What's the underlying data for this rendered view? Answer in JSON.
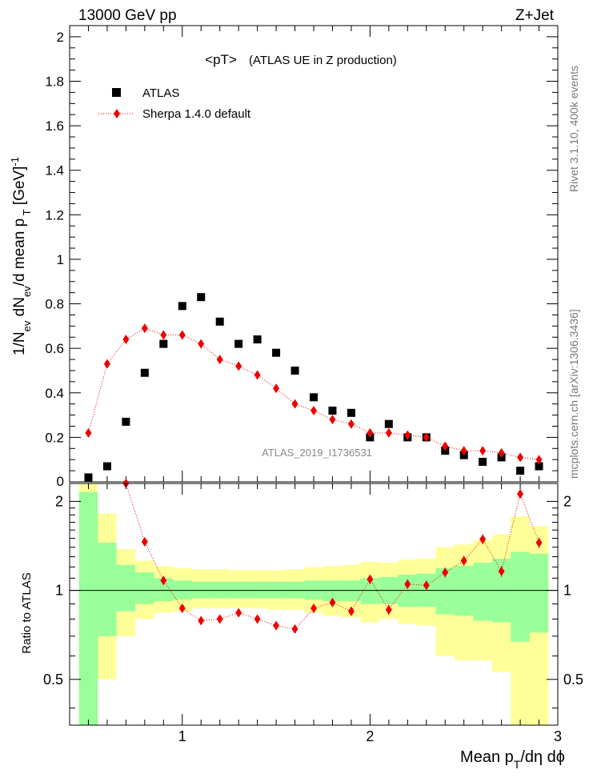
{
  "header": {
    "left": "13000 GeV pp",
    "right": "Z+Jet"
  },
  "side_text": {
    "top": "Rivet 3.1.10,  400k events",
    "bottom": "mcplots.cern.ch [arXiv:1306.3436]"
  },
  "watermark": "ATLAS_2019_I1736531",
  "chart_data": [
    {
      "type": "scatter",
      "panel": "main",
      "title_main": "<pT>",
      "title_sub": "(ATLAS UE in Z production)",
      "ylabel": "1/N_ev dN_ev/d mean p_T [GeV]^-1",
      "xlim": [
        0.4,
        3.0
      ],
      "ylim": [
        0.0,
        2.05
      ],
      "yticks": [
        0.2,
        0.4,
        0.6,
        0.8,
        1.0,
        1.2,
        1.4,
        1.6,
        1.8,
        2.0
      ],
      "ytick_labels": [
        "0.2",
        "0.4",
        "0.6",
        "0.8",
        "1",
        "1.2",
        "1.4",
        "1.6",
        "1.8",
        "2"
      ],
      "bottom_tick_label": "0",
      "legend_position": "top-left",
      "series": [
        {
          "name": "ATLAS",
          "marker": "square",
          "color": "#000000",
          "x": [
            0.5,
            0.6,
            0.7,
            0.8,
            0.9,
            1.0,
            1.1,
            1.2,
            1.3,
            1.4,
            1.5,
            1.6,
            1.7,
            1.8,
            1.9,
            2.0,
            2.1,
            2.2,
            2.3,
            2.4,
            2.5,
            2.6,
            2.7,
            2.8,
            2.9
          ],
          "y": [
            0.02,
            0.07,
            0.27,
            0.49,
            0.62,
            0.79,
            0.83,
            0.72,
            0.62,
            0.64,
            0.58,
            0.5,
            0.38,
            0.32,
            0.31,
            0.2,
            0.26,
            0.2,
            0.2,
            0.14,
            0.12,
            0.09,
            0.11,
            0.05,
            0.07
          ]
        },
        {
          "name": "Sherpa 1.4.0 default",
          "marker": "diamond",
          "color": "#ee0000",
          "line": "dotted",
          "x": [
            0.5,
            0.6,
            0.7,
            0.8,
            0.9,
            1.0,
            1.1,
            1.2,
            1.3,
            1.4,
            1.5,
            1.6,
            1.7,
            1.8,
            1.9,
            2.0,
            2.1,
            2.2,
            2.3,
            2.4,
            2.5,
            2.6,
            2.7,
            2.8,
            2.9
          ],
          "y": [
            0.22,
            0.53,
            0.64,
            0.69,
            0.66,
            0.66,
            0.62,
            0.55,
            0.52,
            0.48,
            0.42,
            0.35,
            0.32,
            0.28,
            0.26,
            0.22,
            0.22,
            0.21,
            0.2,
            0.16,
            0.14,
            0.14,
            0.13,
            0.11,
            0.1
          ],
          "yerr": [
            0.01,
            0.012,
            0.015,
            0.018,
            0.016,
            0.015,
            0.014,
            0.012,
            0.012,
            0.011,
            0.01,
            0.01,
            0.01,
            0.009,
            0.009,
            0.008,
            0.008,
            0.008,
            0.008,
            0.007,
            0.007,
            0.007,
            0.007,
            0.006,
            0.006
          ]
        }
      ]
    },
    {
      "type": "scatter",
      "panel": "ratio",
      "ylabel": "Ratio to ATLAS",
      "xlabel": "Mean p_T/dη dϕ",
      "xlim": [
        0.4,
        3.0
      ],
      "ylim": [
        0.35,
        2.3
      ],
      "log_y": true,
      "yticks": [
        0.5,
        1.0,
        2.0
      ],
      "ytick_labels": [
        "0.5",
        "1",
        "2"
      ],
      "xticks": [
        1,
        2,
        3
      ],
      "xtick_labels": [
        "1",
        "2",
        "3"
      ],
      "bands": {
        "inner_color": "#99ff99",
        "outer_color": "#ffff99",
        "edges": [
          0.45,
          0.55,
          0.65,
          0.75,
          0.85,
          0.95,
          1.05,
          1.15,
          1.25,
          1.35,
          1.45,
          1.55,
          1.65,
          1.75,
          1.85,
          1.95,
          2.05,
          2.15,
          2.25,
          2.35,
          2.45,
          2.55,
          2.65,
          2.75,
          2.85,
          2.95
        ],
        "inner_lo": [
          0.3,
          0.7,
          0.85,
          0.9,
          0.92,
          0.93,
          0.94,
          0.94,
          0.94,
          0.94,
          0.94,
          0.94,
          0.93,
          0.92,
          0.92,
          0.9,
          0.9,
          0.88,
          0.88,
          0.83,
          0.82,
          0.79,
          0.78,
          0.67,
          0.72
        ],
        "inner_hi": [
          2.15,
          1.45,
          1.22,
          1.15,
          1.1,
          1.08,
          1.07,
          1.07,
          1.07,
          1.07,
          1.07,
          1.07,
          1.08,
          1.08,
          1.08,
          1.1,
          1.11,
          1.13,
          1.14,
          1.19,
          1.21,
          1.24,
          1.28,
          1.35,
          1.33
        ],
        "outer_lo": [
          0.3,
          0.5,
          0.7,
          0.8,
          0.84,
          0.85,
          0.87,
          0.87,
          0.87,
          0.87,
          0.86,
          0.86,
          0.84,
          0.82,
          0.81,
          0.78,
          0.8,
          0.77,
          0.76,
          0.6,
          0.58,
          0.58,
          0.53,
          0.3,
          0.34
        ],
        "outer_hi": [
          2.3,
          1.82,
          1.38,
          1.26,
          1.21,
          1.19,
          1.18,
          1.18,
          1.17,
          1.17,
          1.17,
          1.18,
          1.2,
          1.21,
          1.22,
          1.25,
          1.24,
          1.27,
          1.28,
          1.4,
          1.43,
          1.48,
          1.55,
          1.78,
          1.65
        ]
      },
      "series": [
        {
          "name": "Sherpa 1.4.0 default",
          "marker": "diamond",
          "color": "#ee0000",
          "line": "dotted",
          "x": [
            0.7,
            0.8,
            0.9,
            1.0,
            1.1,
            1.2,
            1.3,
            1.4,
            1.5,
            1.6,
            1.7,
            1.8,
            1.9,
            2.0,
            2.1,
            2.2,
            2.3,
            2.4,
            2.5,
            2.6,
            2.7,
            2.8,
            2.9
          ],
          "y": [
            2.3,
            1.46,
            1.08,
            0.87,
            0.79,
            0.8,
            0.84,
            0.8,
            0.76,
            0.74,
            0.87,
            0.91,
            0.85,
            1.09,
            0.86,
            1.05,
            1.04,
            1.15,
            1.26,
            1.49,
            1.16,
            2.12,
            1.45
          ],
          "yerr": [
            0.04,
            0.04,
            0.03,
            0.025,
            0.025,
            0.025,
            0.025,
            0.025,
            0.025,
            0.025,
            0.03,
            0.03,
            0.03,
            0.04,
            0.035,
            0.04,
            0.04,
            0.045,
            0.05,
            0.06,
            0.05,
            0.08,
            0.06
          ]
        }
      ]
    }
  ]
}
